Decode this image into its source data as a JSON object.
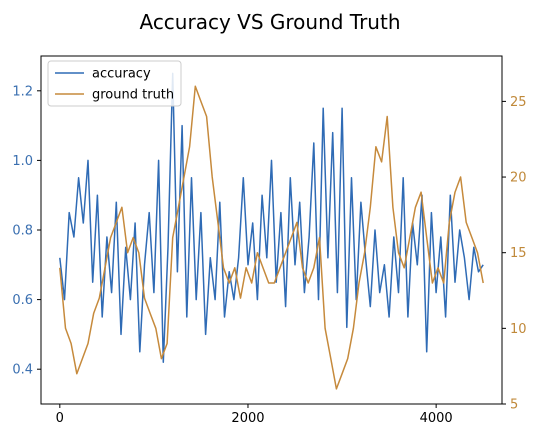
{
  "chart_data": {
    "type": "line",
    "title": "Accuracy VS Ground Truth",
    "xlabel": "",
    "ylabel_left": "",
    "ylabel_right": "",
    "xlim": [
      -200,
      4700
    ],
    "ylim_left": [
      0.3,
      1.3
    ],
    "ylim_right": [
      5,
      28
    ],
    "x_ticks": [
      0,
      2000,
      4000
    ],
    "x_tick_labels": [
      "0",
      "2000",
      "4000"
    ],
    "y_left_ticks": [
      0.4,
      0.6,
      0.8,
      1.0,
      1.2
    ],
    "y_left_tick_labels": [
      "0.4",
      "0.6",
      "0.8",
      "1.0",
      "1.2"
    ],
    "y_right_ticks": [
      5,
      10,
      15,
      20,
      25
    ],
    "y_right_tick_labels": [
      "5",
      "10",
      "15",
      "20",
      "25"
    ],
    "grid": false,
    "legend_position": "top-left",
    "colors": {
      "accuracy": "#2f6bb5",
      "ground_truth": "#c68a3c",
      "left_axis_text": "#3a6fb0",
      "right_axis_text": "#c0893a"
    },
    "series": [
      {
        "name": "accuracy",
        "axis": "left",
        "x": [
          0,
          50,
          100,
          150,
          200,
          250,
          300,
          350,
          400,
          450,
          500,
          550,
          600,
          650,
          700,
          750,
          800,
          850,
          900,
          950,
          1000,
          1050,
          1100,
          1150,
          1200,
          1250,
          1300,
          1350,
          1400,
          1450,
          1500,
          1550,
          1600,
          1650,
          1700,
          1750,
          1800,
          1850,
          1900,
          1950,
          2000,
          2050,
          2100,
          2150,
          2200,
          2250,
          2300,
          2350,
          2400,
          2450,
          2500,
          2550,
          2600,
          2650,
          2700,
          2750,
          2800,
          2850,
          2900,
          2950,
          3000,
          3050,
          3100,
          3150,
          3200,
          3250,
          3300,
          3350,
          3400,
          3450,
          3500,
          3550,
          3600,
          3650,
          3700,
          3750,
          3800,
          3850,
          3900,
          3950,
          4000,
          4050,
          4100,
          4150,
          4200,
          4250,
          4300,
          4350,
          4400,
          4450,
          4500
        ],
        "y": [
          0.72,
          0.6,
          0.85,
          0.78,
          0.95,
          0.82,
          1.0,
          0.65,
          0.9,
          0.55,
          0.78,
          0.62,
          0.88,
          0.5,
          0.75,
          0.6,
          0.82,
          0.45,
          0.7,
          0.85,
          0.62,
          1.0,
          0.42,
          0.75,
          1.25,
          0.68,
          1.1,
          0.55,
          0.95,
          0.6,
          0.85,
          0.5,
          0.72,
          0.6,
          0.88,
          0.55,
          0.68,
          0.6,
          0.72,
          0.95,
          0.7,
          0.82,
          0.6,
          0.9,
          0.72,
          1.0,
          0.65,
          0.85,
          0.58,
          0.95,
          0.7,
          0.88,
          0.62,
          0.78,
          1.05,
          0.6,
          1.15,
          0.72,
          1.08,
          0.62,
          1.15,
          0.52,
          0.95,
          0.6,
          0.88,
          0.72,
          0.58,
          0.8,
          0.62,
          0.7,
          0.55,
          0.78,
          0.62,
          0.95,
          0.55,
          0.82,
          0.7,
          0.9,
          0.45,
          0.85,
          0.62,
          0.78,
          0.55,
          0.9,
          0.65,
          0.8,
          0.72,
          0.6,
          0.75,
          0.68,
          0.7
        ]
      },
      {
        "name": "ground truth",
        "axis": "right",
        "x": [
          0,
          60,
          120,
          180,
          240,
          300,
          360,
          420,
          480,
          540,
          600,
          660,
          720,
          780,
          840,
          900,
          960,
          1020,
          1080,
          1140,
          1200,
          1260,
          1320,
          1380,
          1440,
          1500,
          1560,
          1620,
          1680,
          1740,
          1800,
          1860,
          1920,
          1980,
          2040,
          2100,
          2160,
          2220,
          2280,
          2340,
          2400,
          2460,
          2520,
          2580,
          2640,
          2700,
          2760,
          2820,
          2880,
          2940,
          3000,
          3060,
          3120,
          3180,
          3240,
          3300,
          3360,
          3420,
          3480,
          3540,
          3600,
          3660,
          3720,
          3780,
          3840,
          3900,
          3960,
          4020,
          4080,
          4140,
          4200,
          4260,
          4320,
          4380,
          4440,
          4500
        ],
        "y": [
          14,
          10,
          9,
          7,
          8,
          9,
          11,
          12,
          14,
          16,
          17,
          18,
          15,
          16,
          15,
          12,
          11,
          10,
          8,
          9,
          16,
          18,
          20,
          22,
          26,
          25,
          24,
          20,
          17,
          14,
          13,
          14,
          12,
          14,
          13,
          15,
          14,
          13,
          13,
          14,
          15,
          16,
          17,
          14,
          13,
          14,
          16,
          10,
          8,
          6,
          7,
          8,
          10,
          13,
          15,
          18,
          22,
          21,
          24,
          18,
          15,
          14,
          16,
          18,
          19,
          16,
          13,
          14,
          13,
          17,
          19,
          20,
          17,
          16,
          15,
          13
        ]
      }
    ]
  }
}
